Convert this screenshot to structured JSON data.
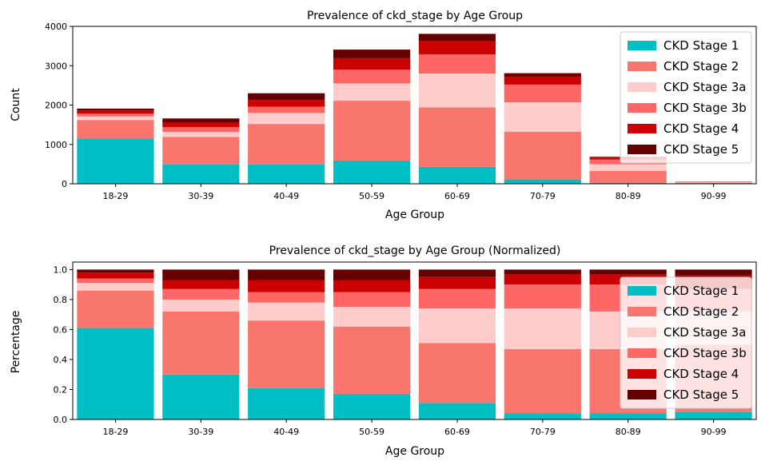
{
  "colors": {
    "CKD Stage 1": "#00bfc4",
    "CKD Stage 2": "#f8766d",
    "CKD Stage 3a": "#ffcccc",
    "CKD Stage 3b": "#ff6666",
    "CKD Stage 4": "#cc0000",
    "CKD Stage 5": "#660000"
  },
  "chart_data": [
    {
      "type": "bar",
      "stacked": true,
      "title": "Prevalence of ckd_stage by Age Group",
      "xlabel": "Age Group",
      "ylabel": "Count",
      "ylim": [
        0,
        4000
      ],
      "yticks": [
        "0",
        "1000",
        "2000",
        "3000",
        "4000"
      ],
      "legend_placement": "upper right",
      "categories": [
        "18-29",
        "30-39",
        "40-49",
        "50-59",
        "60-69",
        "70-79",
        "80-89",
        "90-99"
      ],
      "series": [
        {
          "name": "CKD Stage 1",
          "values": [
            1150,
            490,
            490,
            590,
            430,
            110,
            25,
            3
          ]
        },
        {
          "name": "CKD Stage 2",
          "values": [
            470,
            700,
            1030,
            1520,
            1510,
            1210,
            300,
            25
          ]
        },
        {
          "name": "CKD Stage 3a",
          "values": [
            90,
            130,
            280,
            440,
            860,
            750,
            170,
            12
          ]
        },
        {
          "name": "CKD Stage 3b",
          "values": [
            70,
            120,
            160,
            350,
            490,
            450,
            120,
            8
          ]
        },
        {
          "name": "CKD Stage 4",
          "values": [
            80,
            110,
            170,
            290,
            330,
            200,
            50,
            5
          ]
        },
        {
          "name": "CKD Stage 5",
          "values": [
            50,
            110,
            170,
            220,
            190,
            90,
            20,
            2
          ]
        }
      ]
    },
    {
      "type": "bar",
      "stacked": true,
      "title": "Prevalence of ckd_stage by Age Group (Normalized)",
      "xlabel": "Age Group",
      "ylabel": "Percentage",
      "ylim": [
        0,
        1.05
      ],
      "yticks": [
        "0.0",
        "0.2",
        "0.4",
        "0.6",
        "0.8",
        "1.0"
      ],
      "legend_placement": "right",
      "categories": [
        "18-29",
        "30-39",
        "40-49",
        "50-59",
        "60-69",
        "70-79",
        "80-89",
        "90-99"
      ],
      "series": [
        {
          "name": "CKD Stage 1",
          "values": [
            0.61,
            0.3,
            0.21,
            0.17,
            0.11,
            0.04,
            0.04,
            0.05
          ]
        },
        {
          "name": "CKD Stage 2",
          "values": [
            0.25,
            0.42,
            0.45,
            0.45,
            0.4,
            0.43,
            0.43,
            0.45
          ]
        },
        {
          "name": "CKD Stage 3a",
          "values": [
            0.05,
            0.08,
            0.12,
            0.13,
            0.23,
            0.27,
            0.25,
            0.22
          ]
        },
        {
          "name": "CKD Stage 3b",
          "values": [
            0.03,
            0.07,
            0.07,
            0.1,
            0.13,
            0.16,
            0.18,
            0.15
          ]
        },
        {
          "name": "CKD Stage 4",
          "values": [
            0.04,
            0.06,
            0.08,
            0.08,
            0.08,
            0.07,
            0.07,
            0.09
          ]
        },
        {
          "name": "CKD Stage 5",
          "values": [
            0.02,
            0.07,
            0.07,
            0.07,
            0.05,
            0.03,
            0.03,
            0.04
          ]
        }
      ]
    }
  ]
}
